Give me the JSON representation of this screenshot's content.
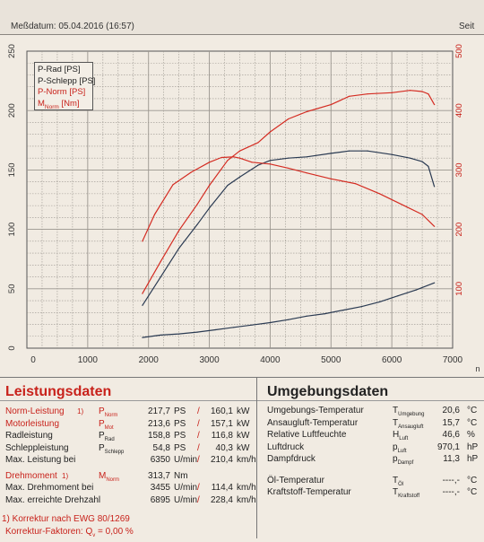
{
  "header": {
    "measurement_date": "Meßdatum: 05.04.2016 (16:57)",
    "page_label": "Seit"
  },
  "colors": {
    "black_series": "#2a3a52",
    "red_series": "#d42c22",
    "red_text": "#c8221b",
    "grid": "#9a958e"
  },
  "chart_data": {
    "type": "line",
    "x_axis": {
      "min": 0,
      "max": 7000,
      "ticks": [
        "0",
        "1000",
        "2000",
        "3000",
        "4000",
        "5000",
        "6000",
        "7000"
      ],
      "extra_label": "n"
    },
    "y_axis_left": {
      "min": 0,
      "max": 250,
      "ticks": [
        "0",
        "50",
        "100",
        "150",
        "200",
        "250"
      ]
    },
    "y_axis_right": {
      "min": 0,
      "max": 500,
      "ticks": [
        "100",
        "200",
        "300",
        "400",
        "500"
      ]
    },
    "legend": [
      {
        "label": "P-Rad [PS]",
        "color": "black"
      },
      {
        "label": "P-Schlepp [PS]",
        "color": "black"
      },
      {
        "label": "P-Norm [PS]",
        "color": "red"
      },
      {
        "label_main": "M",
        "label_sub": "Norm",
        "label_rest": " [Nm]",
        "color": "red"
      }
    ],
    "series": [
      {
        "id": "p_norm",
        "axis": "left",
        "color": "red",
        "x": [
          1900,
          2200,
          2500,
          2800,
          3000,
          3300,
          3500,
          3800,
          4000,
          4300,
          4600,
          5000,
          5300,
          5600,
          6000,
          6300,
          6500,
          6600,
          6700
        ],
        "y": [
          46,
          73,
          99,
          121,
          137,
          158,
          166,
          173,
          182,
          193,
          199,
          205,
          212,
          214,
          215,
          217,
          216,
          214,
          205
        ]
      },
      {
        "id": "p_rad",
        "axis": "left",
        "color": "black",
        "x": [
          1900,
          2200,
          2500,
          2800,
          3000,
          3300,
          3500,
          3800,
          4000,
          4300,
          4600,
          5000,
          5300,
          5600,
          6000,
          6300,
          6500,
          6600,
          6700
        ],
        "y": [
          36,
          60,
          84,
          104,
          118,
          137,
          144,
          154,
          158,
          160,
          161,
          164,
          166,
          166,
          163,
          160,
          157,
          153,
          136
        ]
      },
      {
        "id": "m_norm",
        "axis": "right",
        "color": "red",
        "x": [
          1900,
          2100,
          2400,
          2700,
          3000,
          3200,
          3400,
          3500,
          3700,
          4000,
          4300,
          4600,
          5000,
          5400,
          5800,
          6200,
          6500,
          6700
        ],
        "y": [
          180,
          225,
          275,
          296,
          313,
          321,
          322,
          320,
          313,
          310,
          303,
          295,
          285,
          277,
          260,
          240,
          225,
          205
        ]
      },
      {
        "id": "p_schlepp",
        "axis": "left",
        "color": "black",
        "x": [
          1900,
          2200,
          2500,
          2800,
          3100,
          3400,
          3700,
          4000,
          4300,
          4600,
          4900,
          5200,
          5500,
          5800,
          6100,
          6400,
          6700
        ],
        "y": [
          9,
          11,
          12,
          13.5,
          15.5,
          17.5,
          19.5,
          21.5,
          24,
          27,
          29,
          32,
          35,
          39,
          44,
          49,
          55
        ]
      }
    ]
  },
  "left_panel": {
    "title": "Leistungsdaten",
    "rows": [
      {
        "label": "Norm-Leistung",
        "note": "1)",
        "sym": "P",
        "sub": "Norm",
        "v1": "217,7",
        "u1": "PS",
        "sep": "/",
        "v2": "160,1",
        "u2": "kW",
        "red": true
      },
      {
        "label": "Motorleistung",
        "note": "",
        "sym": "P",
        "sub": "Mot",
        "v1": "213,6",
        "u1": "PS",
        "sep": "/",
        "v2": "157,1",
        "u2": "kW",
        "red": true
      },
      {
        "label": "Radleistung",
        "note": "",
        "sym": "P",
        "sub": "Rad",
        "v1": "158,8",
        "u1": "PS",
        "sep": "/",
        "v2": "116,8",
        "u2": "kW",
        "red": false
      },
      {
        "label": "Schleppleistung",
        "note": "",
        "sym": "P",
        "sub": "Schlepp",
        "v1": "54,8",
        "u1": "PS",
        "sep": "/",
        "v2": "40,3",
        "u2": "kW",
        "red": false
      },
      {
        "label": "Max. Leistung bei",
        "note": "",
        "sym": "",
        "sub": "",
        "v1": "6350",
        "u1": "U/min",
        "sep": "/",
        "v2": "210,4",
        "u2": "km/h",
        "red": false
      },
      {
        "label": "Drehmoment",
        "note": "1)",
        "sym": "M",
        "sub": "Norm",
        "v1": "313,7",
        "u1": "Nm",
        "sep": "",
        "v2": "",
        "u2": "",
        "red": true
      },
      {
        "label": "Max. Drehmoment bei",
        "note": "",
        "sym": "",
        "sub": "",
        "v1": "3455",
        "u1": "U/min",
        "sep": "/",
        "v2": "114,4",
        "u2": "km/h",
        "red": false
      },
      {
        "label": "Max. erreichte Drehzahl",
        "note": "",
        "sym": "",
        "sub": "",
        "v1": "6895",
        "u1": "U/min",
        "sep": "/",
        "v2": "228,4",
        "u2": "km/h",
        "red": false
      }
    ],
    "footnote_1": "1) Korrektur nach EWG 80/1269",
    "footnote_2": "Korrektur-Faktoren:  Q",
    "footnote_2_sub": "v",
    "footnote_2_rest": " =    0,00 %"
  },
  "right_panel": {
    "title": "Umgebungsdaten",
    "rows": [
      {
        "label": "Umgebungs-Temperatur",
        "sym": "T",
        "sub": "Umgebung",
        "value": "20,6",
        "unit": "°C"
      },
      {
        "label": "Ansaugluft-Temperatur",
        "sym": "T",
        "sub": "Ansaugluft",
        "value": "15,7",
        "unit": "°C"
      },
      {
        "label": "Relative Luftfeuchte",
        "sym": "H",
        "sub": "Luft",
        "value": "46,6",
        "unit": "%"
      },
      {
        "label": "Luftdruck",
        "sym": "p",
        "sub": "Luft",
        "value": "970,1",
        "unit": "hP"
      },
      {
        "label": "Dampfdruck",
        "sym": "p",
        "sub": "Dampf",
        "value": "11,3",
        "unit": "hP"
      },
      {
        "label": "Öl-Temperatur",
        "sym": "T",
        "sub": "Öl",
        "value": "----,-",
        "unit": "°C"
      },
      {
        "label": "Kraftstoff-Temperatur",
        "sym": "T",
        "sub": "Kraftstoff",
        "value": "----,-",
        "unit": "°C"
      }
    ]
  }
}
